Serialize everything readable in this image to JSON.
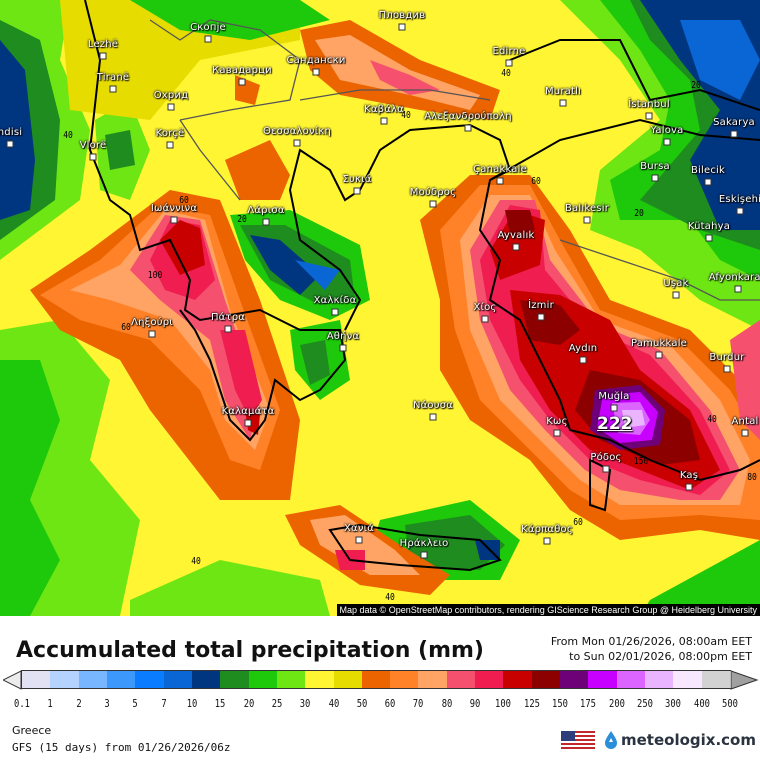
{
  "map": {
    "attribution": "Map data © OpenStreetMap contributors, rendering GIScience Research Group @ Heidelberg University",
    "max_value": "222",
    "cities": [
      "Lezhë",
      "Tiranë",
      "Скопје",
      "Кавадарци",
      "Охрид",
      "Korçë",
      "Vlorë",
      "ndisi",
      "Θεσσαλονίκη",
      "Сандански",
      "Пловдив",
      "Edirne",
      "Muratlı",
      "İstanbul",
      "Yalova",
      "Sakarya",
      "Bursa",
      "Bilecik",
      "Eskişehi",
      "Kütahya",
      "Afyonkarah",
      "Uşak",
      "Balıkesir",
      "Çanakkale",
      "Μούδρος",
      "Ayvalık",
      "Αλεξανδρούπολη",
      "Καβάλα",
      "Συκιά",
      "Ιωάννινα",
      "Λάρισα",
      "Χαλκίδα",
      "Αθήνα",
      "Πάτρα",
      "Ληξούρι",
      "Καλαμάτα",
      "Χανιά",
      "Ηράκλειο",
      "Κάρπαθος",
      "Ρόδος",
      "Κως",
      "Muğla",
      "Aydın",
      "İzmir",
      "Χίος",
      "Νάουσα",
      "Pamukkale",
      "Burdur",
      "Antal",
      "Kaş"
    ],
    "contour_labels": [
      "40",
      "60",
      "20",
      "100",
      "40",
      "40",
      "20",
      "20",
      "60",
      "60",
      "40",
      "40",
      "150",
      "80",
      "60",
      "40"
    ]
  },
  "header": {
    "title": "Accumulated total precipitation (mm)",
    "period_from": "From Mon 01/26/2026, 08:00am EET",
    "period_to": "to Sun 02/01/2026, 08:00pm EET"
  },
  "legend": {
    "ticks": [
      "0.1",
      "1",
      "2",
      "3",
      "5",
      "7",
      "10",
      "15",
      "20",
      "25",
      "30",
      "40",
      "50",
      "60",
      "70",
      "80",
      "90",
      "100",
      "125",
      "150",
      "175",
      "200",
      "250",
      "300",
      "400",
      "500"
    ],
    "colors": [
      "#e1e1f3",
      "#b4d4ff",
      "#78b6ff",
      "#3c98fa",
      "#0a7cff",
      "#0a66d4",
      "#003580",
      "#1e8c1e",
      "#1ec80a",
      "#6ee614",
      "#fff532",
      "#e6dc00",
      "#eb6400",
      "#ff8228",
      "#ffa464",
      "#f5506e",
      "#f01e50",
      "#c80000",
      "#8c0000",
      "#6e0078",
      "#c800ff",
      "#dc64ff",
      "#ebb4ff",
      "#f7e8ff",
      "#d2d2d2"
    ],
    "under_color": "#ececec",
    "over_color": "#a0a0a0"
  },
  "footer": {
    "region": "Greece",
    "model": "GFS (15 days) from  01/26/2026/06z",
    "brand": "meteologix.com"
  }
}
